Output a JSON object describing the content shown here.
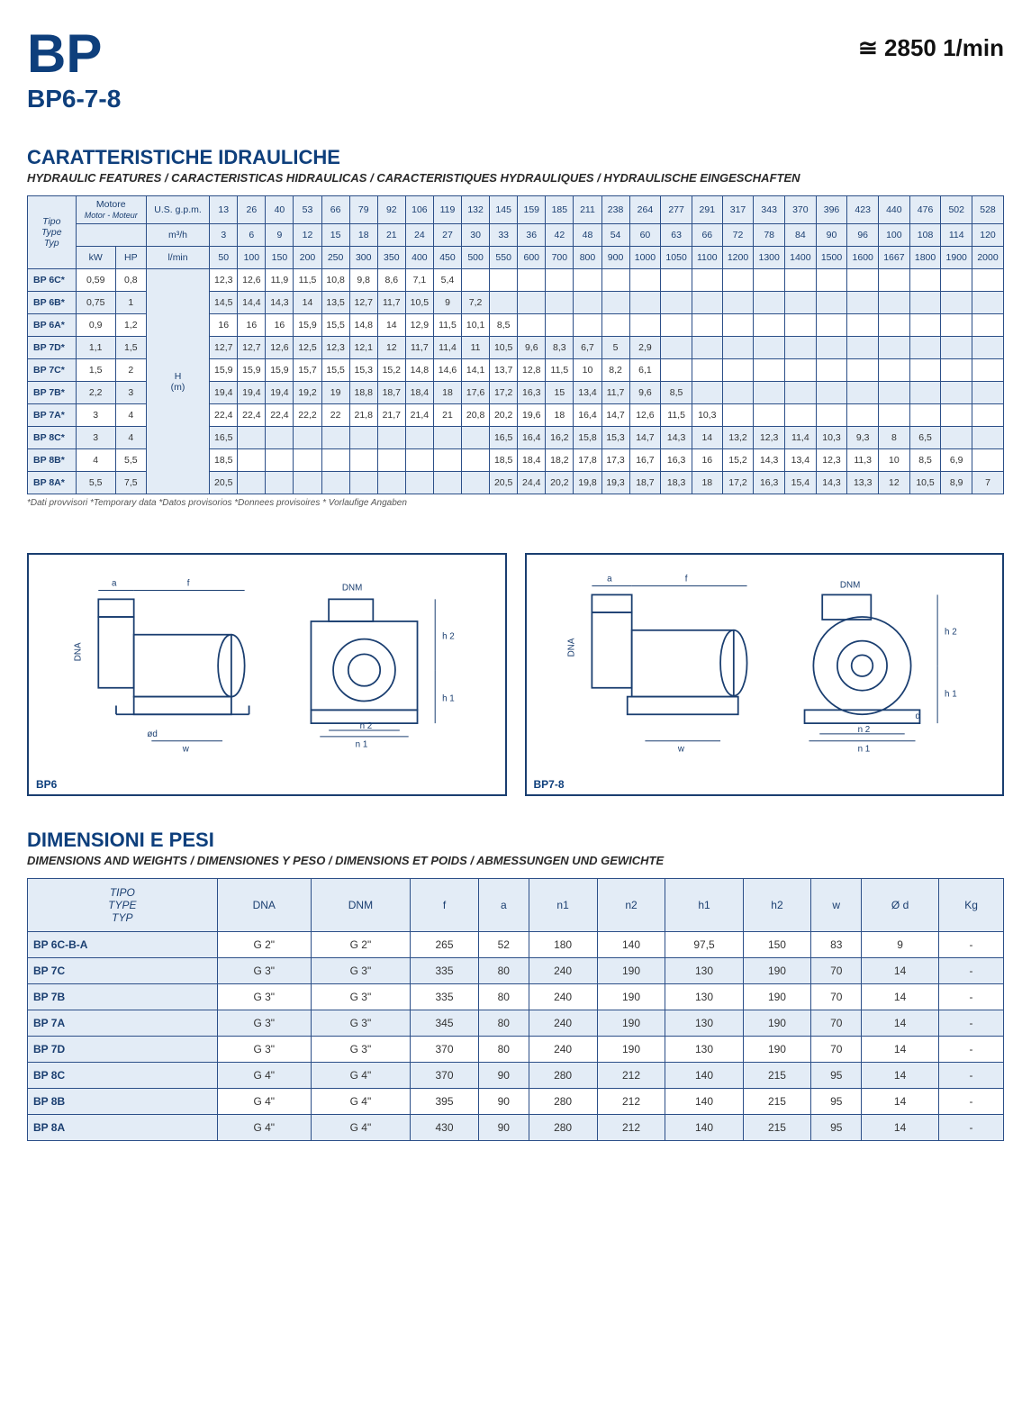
{
  "header": {
    "logo": "BP",
    "sub": "BP6-7-8",
    "rpm": "≅ 2850 1/min"
  },
  "sec1": {
    "title": "CARATTERISTICHE IDRAULICHE",
    "sub": "HYDRAULIC FEATURES / CARACTERISTICAS HIDRAULICAS / CARACTERISTIQUES HYDRAULIQUES / HYDRAULISCHE EINGESCHAFTEN",
    "headers": {
      "tipo": "Tipo",
      "type": "Type",
      "typ": "Typ",
      "motore": "Motore",
      "motor_sub": "Motor - Moteur",
      "kw": "kW",
      "hp": "HP",
      "usgpm": "U.S. g.p.m.",
      "m3h": "m³/h",
      "lmin": "l/min",
      "h_m": "H\n(m)"
    },
    "usgpm_row": [
      "13",
      "26",
      "40",
      "53",
      "66",
      "79",
      "92",
      "106",
      "119",
      "132",
      "145",
      "159",
      "185",
      "211",
      "238",
      "264",
      "277",
      "291",
      "317",
      "343",
      "370",
      "396",
      "423",
      "440",
      "476",
      "502",
      "528"
    ],
    "m3h_row": [
      "3",
      "6",
      "9",
      "12",
      "15",
      "18",
      "21",
      "24",
      "27",
      "30",
      "33",
      "36",
      "42",
      "48",
      "54",
      "60",
      "63",
      "66",
      "72",
      "78",
      "84",
      "90",
      "96",
      "100",
      "108",
      "114",
      "120"
    ],
    "lmin_row": [
      "50",
      "100",
      "150",
      "200",
      "250",
      "300",
      "350",
      "400",
      "450",
      "500",
      "550",
      "600",
      "700",
      "800",
      "900",
      "1000",
      "1050",
      "1100",
      "1200",
      "1300",
      "1400",
      "1500",
      "1600",
      "1667",
      "1800",
      "1900",
      "2000"
    ],
    "rows": [
      {
        "t": "BP 6C*",
        "kw": "0,59",
        "hp": "0,8",
        "v": [
          "12,3",
          "12,6",
          "11,9",
          "11,5",
          "10,8",
          "9,8",
          "8,6",
          "7,1",
          "5,4",
          "",
          "",
          "",
          "",
          "",
          "",
          "",
          "",
          "",
          "",
          "",
          "",
          "",
          "",
          "",
          "",
          "",
          ""
        ]
      },
      {
        "t": "BP 6B*",
        "kw": "0,75",
        "hp": "1",
        "v": [
          "14,5",
          "14,4",
          "14,3",
          "14",
          "13,5",
          "12,7",
          "11,7",
          "10,5",
          "9",
          "7,2",
          "",
          "",
          "",
          "",
          "",
          "",
          "",
          "",
          "",
          "",
          "",
          "",
          "",
          "",
          "",
          "",
          ""
        ]
      },
      {
        "t": "BP 6A*",
        "kw": "0,9",
        "hp": "1,2",
        "v": [
          "16",
          "16",
          "16",
          "15,9",
          "15,5",
          "14,8",
          "14",
          "12,9",
          "11,5",
          "10,1",
          "8,5",
          "",
          "",
          "",
          "",
          "",
          "",
          "",
          "",
          "",
          "",
          "",
          "",
          "",
          "",
          "",
          ""
        ]
      },
      {
        "t": "BP 7D*",
        "kw": "1,1",
        "hp": "1,5",
        "v": [
          "12,7",
          "12,7",
          "12,6",
          "12,5",
          "12,3",
          "12,1",
          "12",
          "11,7",
          "11,4",
          "11",
          "10,5",
          "9,6",
          "8,3",
          "6,7",
          "5",
          "2,9",
          "",
          "",
          "",
          "",
          "",
          "",
          "",
          "",
          "",
          "",
          ""
        ]
      },
      {
        "t": "BP 7C*",
        "kw": "1,5",
        "hp": "2",
        "v": [
          "15,9",
          "15,9",
          "15,9",
          "15,7",
          "15,5",
          "15,3",
          "15,2",
          "14,8",
          "14,6",
          "14,1",
          "13,7",
          "12,8",
          "11,5",
          "10",
          "8,2",
          "6,1",
          "",
          "",
          "",
          "",
          "",
          "",
          "",
          "",
          "",
          "",
          ""
        ]
      },
      {
        "t": "BP 7B*",
        "kw": "2,2",
        "hp": "3",
        "v": [
          "19,4",
          "19,4",
          "19,4",
          "19,2",
          "19",
          "18,8",
          "18,7",
          "18,4",
          "18",
          "17,6",
          "17,2",
          "16,3",
          "15",
          "13,4",
          "11,7",
          "9,6",
          "8,5",
          "",
          "",
          "",
          "",
          "",
          "",
          "",
          "",
          "",
          ""
        ]
      },
      {
        "t": "BP 7A*",
        "kw": "3",
        "hp": "4",
        "v": [
          "22,4",
          "22,4",
          "22,4",
          "22,2",
          "22",
          "21,8",
          "21,7",
          "21,4",
          "21",
          "20,8",
          "20,2",
          "19,6",
          "18",
          "16,4",
          "14,7",
          "12,6",
          "11,5",
          "10,3",
          "",
          "",
          "",
          "",
          "",
          "",
          "",
          "",
          ""
        ]
      },
      {
        "t": "BP 8C*",
        "kw": "3",
        "hp": "4",
        "v": [
          "16,5",
          "",
          "",
          "",
          "",
          "",
          "",
          "",
          "",
          "",
          "16,5",
          "16,4",
          "16,2",
          "15,8",
          "15,3",
          "14,7",
          "14,3",
          "14",
          "13,2",
          "12,3",
          "11,4",
          "10,3",
          "9,3",
          "8",
          "6,5",
          "",
          ""
        ]
      },
      {
        "t": "BP 8B*",
        "kw": "4",
        "hp": "5,5",
        "v": [
          "18,5",
          "",
          "",
          "",
          "",
          "",
          "",
          "",
          "",
          "",
          "18,5",
          "18,4",
          "18,2",
          "17,8",
          "17,3",
          "16,7",
          "16,3",
          "16",
          "15,2",
          "14,3",
          "13,4",
          "12,3",
          "11,3",
          "10",
          "8,5",
          "6,9",
          ""
        ]
      },
      {
        "t": "BP 8A*",
        "kw": "5,5",
        "hp": "7,5",
        "v": [
          "20,5",
          "",
          "",
          "",
          "",
          "",
          "",
          "",
          "",
          "",
          "20,5",
          "24,4",
          "20,2",
          "19,8",
          "19,3",
          "18,7",
          "18,3",
          "18",
          "17,2",
          "16,3",
          "15,4",
          "14,3",
          "13,3",
          "12",
          "10,5",
          "8,9",
          "7"
        ]
      }
    ],
    "footnote": "*Dati provvisori  *Temporary data  *Datos provisorios  *Donnees provisoires  * Vorlaufige Angaben"
  },
  "diagrams": {
    "left_label": "BP6",
    "right_label": "BP7-8",
    "dims": [
      "a",
      "f",
      "DNM",
      "DNA",
      "ød",
      "w",
      "n 2",
      "n 1",
      "h 1",
      "h 2",
      "d"
    ]
  },
  "sec2": {
    "title": "DIMENSIONI E PESI",
    "sub": "DIMENSIONS AND WEIGHTS / DIMENSIONES Y PESO / DIMENSIONS ET POIDS / ABMESSUNGEN UND GEWICHTE",
    "cols": [
      "TIPO\nTYPE\nTYP",
      "DNA",
      "DNM",
      "f",
      "a",
      "n1",
      "n2",
      "h1",
      "h2",
      "w",
      "Ø d",
      "Kg"
    ],
    "rows": [
      [
        "BP 6C-B-A",
        "G 2\"",
        "G 2\"",
        "265",
        "52",
        "180",
        "140",
        "97,5",
        "150",
        "83",
        "9",
        "-"
      ],
      [
        "BP 7C",
        "G 3\"",
        "G 3\"",
        "335",
        "80",
        "240",
        "190",
        "130",
        "190",
        "70",
        "14",
        "-"
      ],
      [
        "BP 7B",
        "G 3\"",
        "G 3\"",
        "335",
        "80",
        "240",
        "190",
        "130",
        "190",
        "70",
        "14",
        "-"
      ],
      [
        "BP 7A",
        "G 3\"",
        "G 3\"",
        "345",
        "80",
        "240",
        "190",
        "130",
        "190",
        "70",
        "14",
        "-"
      ],
      [
        "BP 7D",
        "G 3\"",
        "G 3\"",
        "370",
        "80",
        "240",
        "190",
        "130",
        "190",
        "70",
        "14",
        "-"
      ],
      [
        "BP 8C",
        "G 4\"",
        "G 4\"",
        "370",
        "90",
        "280",
        "212",
        "140",
        "215",
        "95",
        "14",
        "-"
      ],
      [
        "BP 8B",
        "G 4\"",
        "G 4\"",
        "395",
        "90",
        "280",
        "212",
        "140",
        "215",
        "95",
        "14",
        "-"
      ],
      [
        "BP 8A",
        "G 4\"",
        "G 4\"",
        "430",
        "90",
        "280",
        "212",
        "140",
        "215",
        "95",
        "14",
        "-"
      ]
    ]
  },
  "style": {
    "primary_color": "#0e3f7c",
    "header_bg": "#e3ecf6",
    "border_color": "#2c4f88"
  }
}
